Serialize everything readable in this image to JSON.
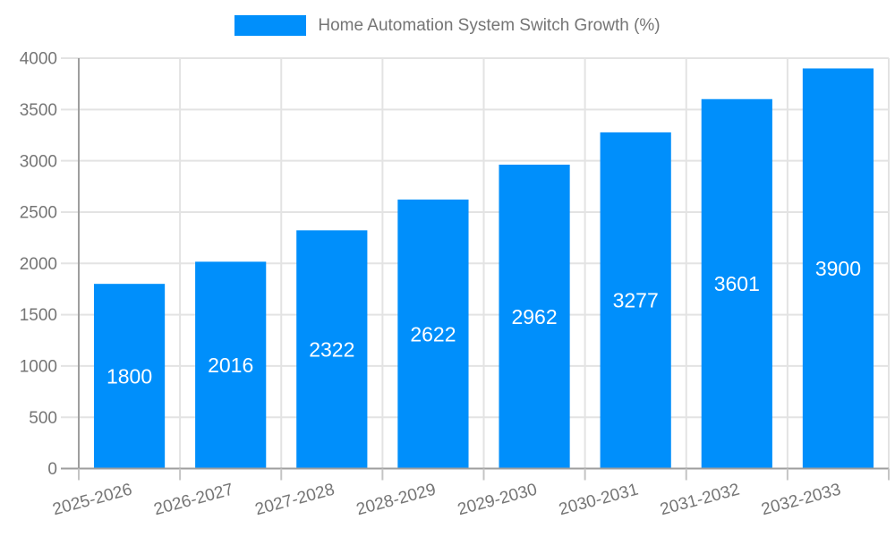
{
  "chart_data": {
    "type": "bar",
    "title": "",
    "legend": {
      "label": "Home Automation System Switch Growth (%)",
      "position": "top",
      "marker": "rect"
    },
    "categories": [
      "2025-2026",
      "2026-2027",
      "2027-2028",
      "2028-2029",
      "2029-2030",
      "2030-2031",
      "2031-2032",
      "2032-2033"
    ],
    "values": [
      1800,
      2016,
      2322,
      2622,
      2962,
      3277,
      3601,
      3900
    ],
    "xlabel": "",
    "ylabel": "",
    "ylim": [
      0,
      4000
    ],
    "yticks": [
      0,
      500,
      1000,
      1500,
      2000,
      2500,
      3000,
      3500,
      4000
    ],
    "grid": "horizontal-and-vertical",
    "x_label_rotation": -15,
    "colors": {
      "bar": "#008FFB",
      "value_label": "#ffffff",
      "axis_text": "#757575",
      "grid_line": "#e3e3e3",
      "axis_line": "#9e9e9e",
      "x_tick": "#c4c4c4",
      "background": "#ffffff"
    }
  }
}
